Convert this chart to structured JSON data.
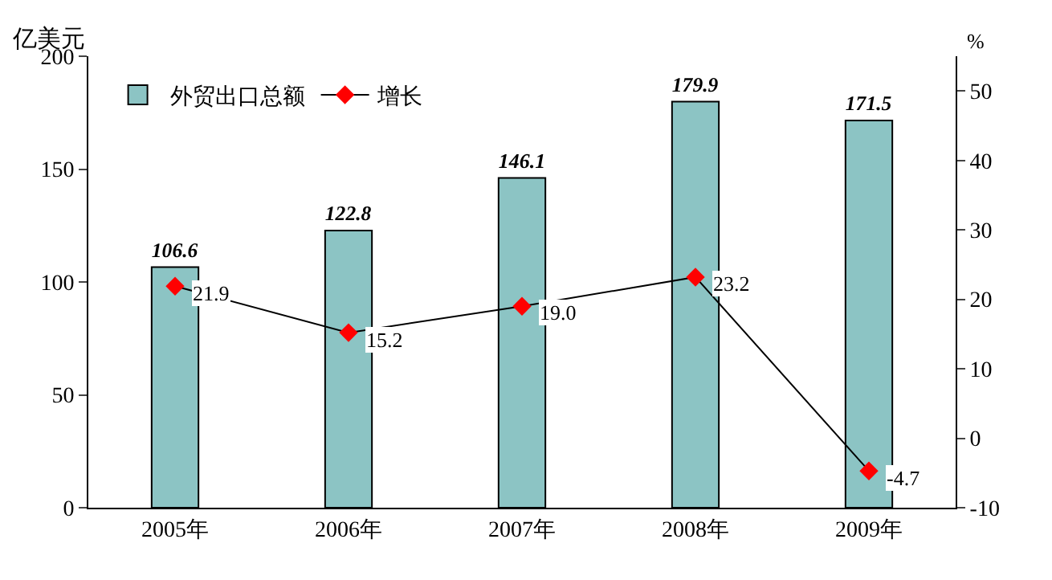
{
  "chart_data": {
    "type": "bar",
    "categories": [
      "2005年",
      "2006年",
      "2007年",
      "2008年",
      "2009年"
    ],
    "ylabel": "亿美元",
    "y2label": "%",
    "series": [
      {
        "name": "外贸出口总额",
        "color": "#8cc4c4",
        "values": [
          106.6,
          122.8,
          146.1,
          179.9,
          171.5
        ]
      },
      {
        "name": "增长",
        "type": "line",
        "axis": "y2",
        "color": "#ff0000",
        "values": [
          21.9,
          15.2,
          19.0,
          23.2,
          -4.7
        ],
        "value_labels": [
          "21.9",
          "15.2",
          "19.0",
          "23.2",
          "-4.7"
        ]
      }
    ],
    "data_labels": true,
    "ylim": [
      0,
      200
    ],
    "yticks": [
      0,
      50,
      100,
      150,
      200
    ],
    "y2lim": [
      -10,
      55
    ],
    "y2ticks": [
      -10,
      0,
      10,
      20,
      30,
      40,
      50
    ],
    "marker": "diamond",
    "legend": "top left"
  }
}
